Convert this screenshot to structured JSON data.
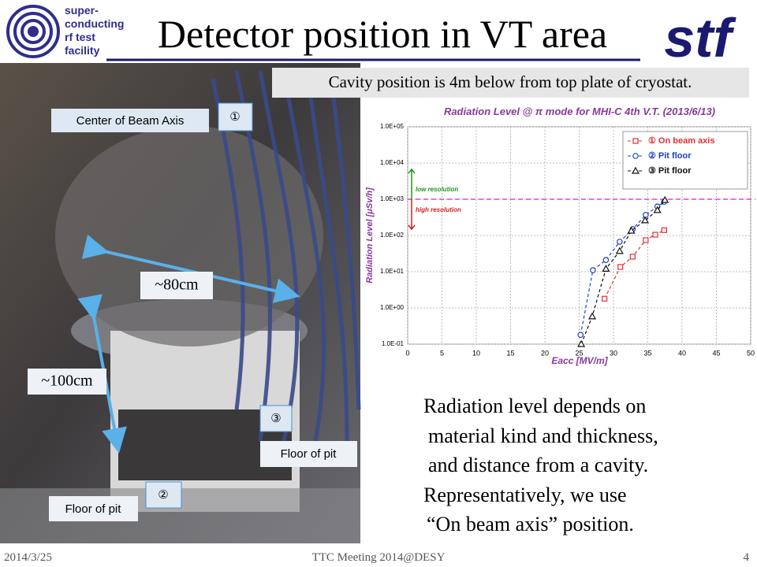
{
  "header": {
    "logo_lines": [
      "super-",
      "conducting",
      "rf  test",
      "facility"
    ],
    "title": "Detector position in VT area",
    "logo_mark": "stf"
  },
  "note": "Cavity position is 4m below from top plate of cryostat.",
  "photo": {
    "labels": [
      "Center of Beam Axis",
      "①",
      "~80cm",
      "~100cm",
      "③",
      "Floor of pit",
      "②",
      "Floor of pit"
    ]
  },
  "chart_data": {
    "type": "scatter",
    "title": "Radiation Level @ π mode for MHI-C 4th V.T. (2013/6/13)",
    "x_label": "Eacc [MV/m]",
    "y_label": "Radiation Level [μSv/h]",
    "xlim": [
      0,
      50
    ],
    "xticks": [
      0,
      5,
      10,
      15,
      20,
      25,
      30,
      35,
      40,
      45,
      50
    ],
    "ylim": [
      0.1,
      100000
    ],
    "yscale": "log",
    "yticks": [
      {
        "value": 0.1,
        "label": "1.0E-01"
      },
      {
        "value": 1,
        "label": "1.0E+00"
      },
      {
        "value": 10,
        "label": "1.0E+01"
      },
      {
        "value": 100,
        "label": "1.0E+02"
      },
      {
        "value": 1000,
        "label": "1.0E+03"
      },
      {
        "value": 10000,
        "label": "1.0E+04"
      },
      {
        "value": 100000,
        "label": "1.0E+05"
      }
    ],
    "grid": true,
    "legend": "upper right",
    "hline": {
      "value": 1000,
      "color": "#e040e0"
    },
    "annotations": [
      {
        "text": "low resolution",
        "color": "#1a9a1a"
      },
      {
        "text": "high resolution",
        "color": "#d02020"
      }
    ],
    "series": [
      {
        "name": "① On beam axis",
        "color": "#e03030",
        "marker": "square",
        "x": [
          28.7,
          31.0,
          32.8,
          34.7,
          36.1,
          37.4
        ],
        "values": [
          1.8,
          13.5,
          26,
          74,
          105,
          140
        ]
      },
      {
        "name": "② Pit floor",
        "color": "#2040c0",
        "marker": "circle",
        "x": [
          25.2,
          27.0,
          28.9,
          30.9,
          32.8,
          34.7,
          36.4,
          37.4
        ],
        "values": [
          0.18,
          11,
          21,
          67,
          150,
          370,
          630,
          850
        ]
      },
      {
        "name": "③ Pit floor",
        "color": "#101010",
        "marker": "triangle",
        "x": [
          25.3,
          26.9,
          28.9,
          30.9,
          32.6,
          34.6,
          36.4,
          37.5
        ],
        "values": [
          0.1,
          0.58,
          12,
          37,
          135,
          260,
          500,
          950
        ]
      }
    ]
  },
  "body": [
    "Radiation level depends on",
    "material kind and thickness,",
    "and distance from a cavity.",
    "Representatively,  we use",
    "“On beam axis”  position."
  ],
  "footer": {
    "date": "2014/3/25",
    "event": "TTC Meeting 2014@DESY",
    "page": "4"
  }
}
